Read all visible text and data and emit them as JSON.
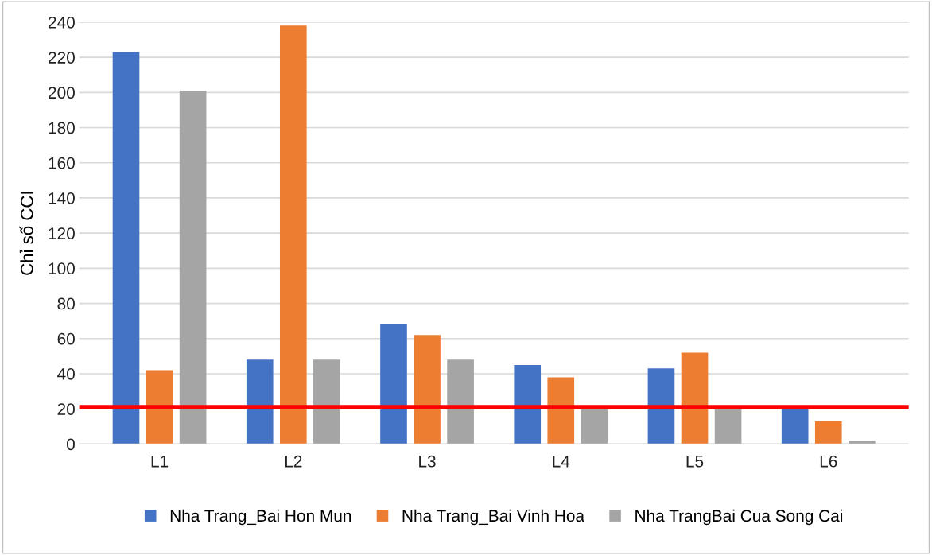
{
  "chart_data": {
    "type": "bar",
    "ylabel": "Chỉ số CCI",
    "categories": [
      "L1",
      "L2",
      "L3",
      "L4",
      "L5",
      "L6"
    ],
    "series": [
      {
        "name": "Nha Trang_Bai Hon Mun",
        "color": "#4472c4",
        "values": [
          223,
          48,
          68,
          45,
          43,
          20
        ]
      },
      {
        "name": "Nha Trang_Bai Vinh Hoa",
        "color": "#ed7d31",
        "values": [
          42,
          238,
          62,
          38,
          52,
          13
        ]
      },
      {
        "name": "Nha TrangBai Cua Song Cai",
        "color": "#a5a5a5",
        "values": [
          201,
          48,
          48,
          20,
          20,
          2
        ]
      }
    ],
    "ylim": [
      0,
      240
    ],
    "yticks": [
      0,
      20,
      40,
      60,
      80,
      100,
      120,
      140,
      160,
      180,
      200,
      220,
      240
    ],
    "ref_lines": [
      {
        "axis": "y",
        "value": 21,
        "color": "#ff0000"
      }
    ],
    "grid": "y",
    "legend": "bottom"
  }
}
